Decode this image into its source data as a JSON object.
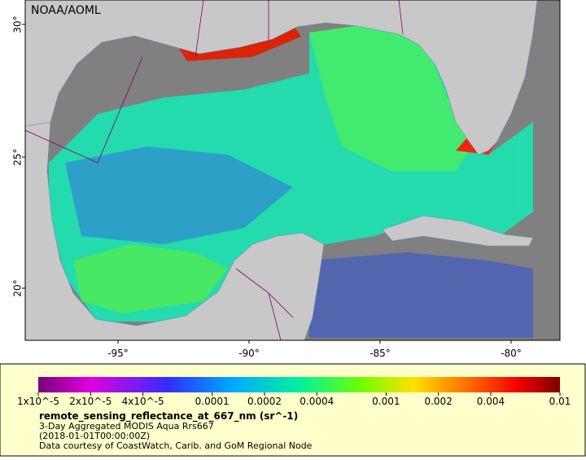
{
  "map": {
    "credit": "NOAA/AOML",
    "lat_labels": [
      "30°",
      "25°",
      "20°"
    ],
    "lon_labels": [
      "-95°",
      "-90°",
      "-85°",
      "-80°"
    ],
    "colorbar": {
      "scale": "log",
      "range": [
        1e-05,
        0.01
      ],
      "ticks": [
        {
          "value": 1e-05,
          "label": "1x10^-5"
        },
        {
          "value": 2e-05,
          "label": "2x10^-5"
        },
        {
          "value": 4e-05,
          "label": "4x10^-5"
        },
        {
          "value": 0.0001,
          "label": "0.0001"
        },
        {
          "value": 0.0002,
          "label": "0.0002"
        },
        {
          "value": 0.0004,
          "label": "0.0004"
        },
        {
          "value": 0.001,
          "label": "0.001"
        },
        {
          "value": 0.002,
          "label": "0.002"
        },
        {
          "value": 0.004,
          "label": "0.004"
        },
        {
          "value": 0.01,
          "label": "0.01"
        }
      ]
    },
    "variable": "remote_sensing_reflectance_at_667_nm (sr^-1)",
    "description": "3-Day Aggregated MODIS Aqua Rrs667",
    "time": "(2018-01-01T00:00:00Z)",
    "source": "Data courtesy of CoastWatch, Carib. and GoM Regional Node"
  }
}
